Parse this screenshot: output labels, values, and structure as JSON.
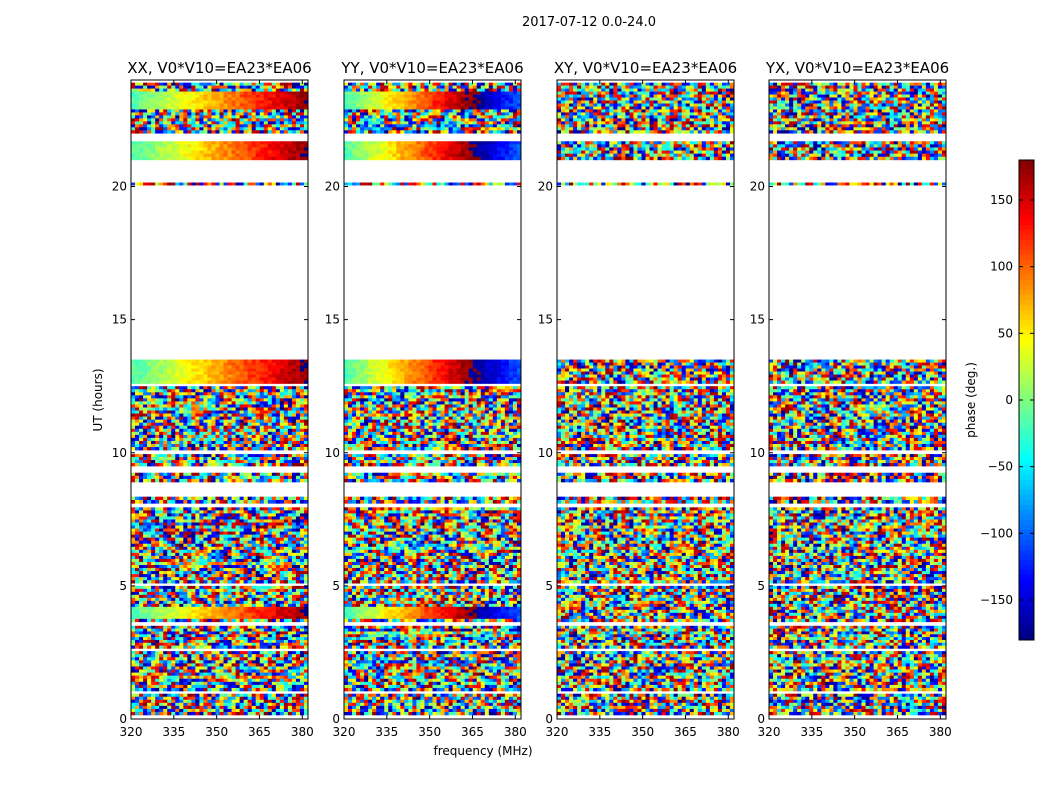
{
  "figure": {
    "suptitle": "2017-07-12 0.0-24.0"
  },
  "chart_data": {
    "type": "heatmap",
    "xlabel": "frequency (MHz)",
    "ylabel": "UT (hours)",
    "xlim": [
      320,
      382
    ],
    "ylim": [
      0,
      24
    ],
    "xticks": [
      320,
      335,
      350,
      365,
      380
    ],
    "yticks": [
      0,
      5,
      10,
      15,
      20
    ],
    "panels": [
      {
        "title": "XX, V0*V10=EA23*EA06",
        "polarization": "XX"
      },
      {
        "title": "YY, V0*V10=EA23*EA06",
        "polarization": "YY"
      },
      {
        "title": "XY, V0*V10=EA23*EA06",
        "polarization": "XY"
      },
      {
        "title": "YX, V0*V10=EA23*EA06",
        "polarization": "YX"
      }
    ],
    "colorbar": {
      "label": "phase (deg.)",
      "range": [
        -180,
        180
      ],
      "ticks": [
        -150,
        -100,
        -50,
        0,
        50,
        100,
        150
      ],
      "tick_labels": [
        "−150",
        "−100",
        "−50",
        "0",
        "50",
        "100",
        "150"
      ],
      "colormap": "jet"
    },
    "data_intervals_ut_hours": [
      [
        0.15,
        0.95
      ],
      [
        1.05,
        2.55
      ],
      [
        2.65,
        3.5
      ],
      [
        3.65,
        5.0
      ],
      [
        5.1,
        7.95
      ],
      [
        8.1,
        8.35
      ],
      [
        8.9,
        9.25
      ],
      [
        9.5,
        9.95
      ],
      [
        10.1,
        12.5
      ],
      [
        12.6,
        13.5
      ],
      [
        20.05,
        20.15
      ],
      [
        21.0,
        21.7
      ],
      [
        22.0,
        23.9
      ]
    ],
    "data_gaps_ut_hours": [
      [
        13.5,
        20.0
      ],
      [
        20.2,
        21.0
      ]
    ]
  }
}
